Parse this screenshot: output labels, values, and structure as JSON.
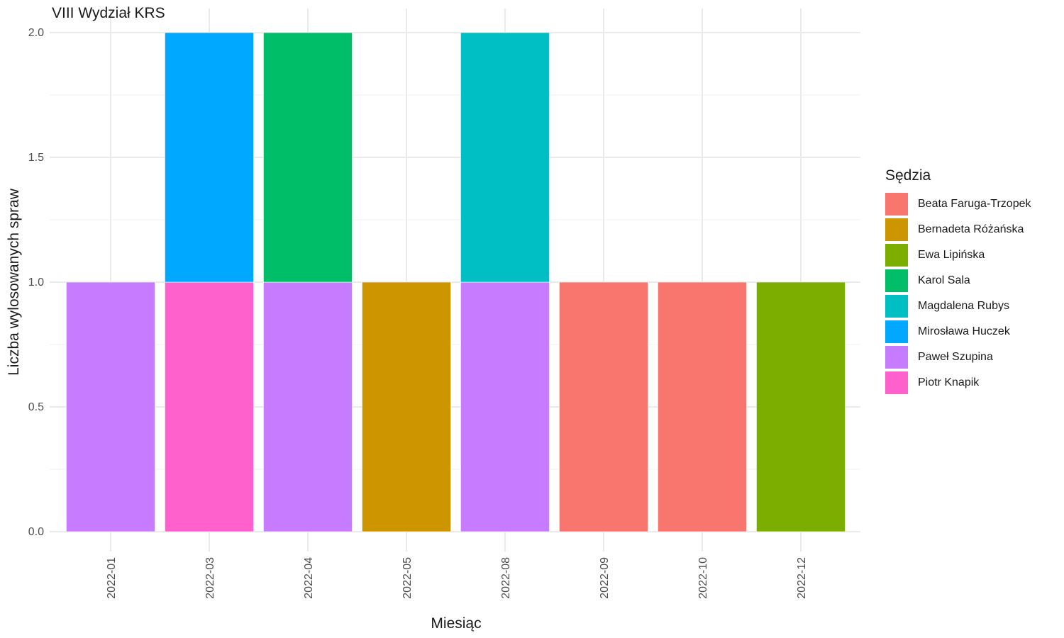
{
  "chart_data": {
    "type": "bar",
    "stacked": true,
    "title": "VIII Wydział KRS",
    "xlabel": "Miesiąc",
    "ylabel": "Liczba wylosowanych spraw",
    "ylim": [
      0,
      2
    ],
    "yticks": [
      "0.0",
      "0.5",
      "1.0",
      "1.5",
      "2.0"
    ],
    "grid": true,
    "legend_title": "Sędzia",
    "legend_position": "right",
    "categories": [
      "2022-01",
      "2022-03",
      "2022-04",
      "2022-05",
      "2022-08",
      "2022-09",
      "2022-10",
      "2022-12"
    ],
    "series": [
      {
        "name": "Beata Faruga-Trzopek",
        "color": "#F8766D",
        "values": [
          0,
          0,
          0,
          0,
          0,
          1,
          1,
          0
        ]
      },
      {
        "name": "Bernadeta Różańska",
        "color": "#CD9600",
        "values": [
          0,
          0,
          0,
          1,
          0,
          0,
          0,
          0
        ]
      },
      {
        "name": "Ewa Lipińska",
        "color": "#7CAE00",
        "values": [
          0,
          0,
          0,
          0,
          0,
          0,
          0,
          1
        ]
      },
      {
        "name": "Karol Sala",
        "color": "#00BE67",
        "values": [
          0,
          0,
          1,
          0,
          0,
          0,
          0,
          0
        ]
      },
      {
        "name": "Magdalena Rubys",
        "color": "#00BFC4",
        "values": [
          0,
          0,
          0,
          0,
          1,
          0,
          0,
          0
        ]
      },
      {
        "name": "Mirosława Huczek",
        "color": "#00A9FF",
        "values": [
          0,
          1,
          0,
          0,
          0,
          0,
          0,
          0
        ]
      },
      {
        "name": "Paweł Szupina",
        "color": "#C77CFF",
        "values": [
          1,
          0,
          1,
          0,
          1,
          0,
          0,
          0
        ]
      },
      {
        "name": "Piotr Knapik",
        "color": "#FF61CC",
        "values": [
          0,
          1,
          0,
          0,
          0,
          0,
          0,
          0
        ]
      }
    ]
  }
}
